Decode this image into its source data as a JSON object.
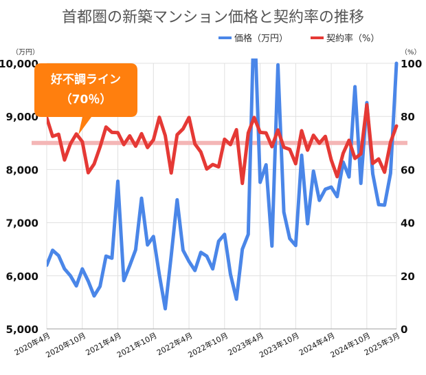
{
  "chart_data": {
    "type": "line",
    "title": "首都圏の新築マンション価格と契約率の推移",
    "x": [
      "2020年4月",
      "2020年5月",
      "2020年6月",
      "2020年7月",
      "2020年8月",
      "2020年9月",
      "2020年10月",
      "2020年11月",
      "2020年12月",
      "2021年1月",
      "2021年2月",
      "2021年3月",
      "2021年4月",
      "2021年5月",
      "2021年6月",
      "2021年7月",
      "2021年8月",
      "2021年9月",
      "2021年10月",
      "2021年11月",
      "2021年12月",
      "2022年1月",
      "2022年2月",
      "2022年3月",
      "2022年4月",
      "2022年5月",
      "2022年6月",
      "2022年7月",
      "2022年8月",
      "2022年9月",
      "2022年10月",
      "2022年11月",
      "2022年12月",
      "2023年1月",
      "2023年2月",
      "2023年3月",
      "2023年4月",
      "2023年5月",
      "2023年6月",
      "2023年7月",
      "2023年8月",
      "2023年9月",
      "2023年10月",
      "2023年11月",
      "2023年12月",
      "2024年1月",
      "2024年2月",
      "2024年3月",
      "2024年4月",
      "2024年5月",
      "2024年6月",
      "2024年7月",
      "2024年8月",
      "2024年9月",
      "2024年10月",
      "2024年11月",
      "2024年12月",
      "2025年1月",
      "2025年2月",
      "2025年3月"
    ],
    "x_tick_labels": [
      "2020年4月",
      "2020年10月",
      "2021年4月",
      "2021年10月",
      "2022年4月",
      "2022年10月",
      "2023年4月",
      "2023年10月",
      "2024年4月",
      "2024年10月",
      "2025年3月"
    ],
    "y_left": {
      "unit_label": "（万円）",
      "lim": [
        5000,
        10000
      ],
      "ticks": [
        "5,000",
        "6,000",
        "7,000",
        "8,000",
        "9,000",
        "10,000"
      ]
    },
    "y_right": {
      "unit_label": "（%）",
      "lim": [
        0,
        100
      ],
      "ticks": [
        "0",
        "20",
        "40",
        "60",
        "80",
        "100"
      ]
    },
    "series": [
      {
        "name": "価格（万円）",
        "axis": "left",
        "color": "#4a86e8",
        "values": [
          6200,
          6480,
          6380,
          6130,
          6000,
          5810,
          6130,
          5900,
          5620,
          5800,
          6370,
          6330,
          7780,
          5910,
          6190,
          6490,
          7460,
          6580,
          6740,
          6020,
          5380,
          6380,
          7430,
          6480,
          6270,
          6100,
          6440,
          6370,
          6130,
          6650,
          6780,
          6030,
          5560,
          6500,
          6780,
          11000,
          7760,
          8090,
          6560,
          9970,
          7200,
          6700,
          6570,
          8270,
          6980,
          7970,
          7420,
          7630,
          7670,
          7490,
          8140,
          7860,
          9560,
          7740,
          9260,
          7920,
          7340,
          7330,
          7930,
          10000
        ]
      },
      {
        "name": "契約率（%）",
        "axis": "right",
        "color": "#e53935",
        "values": [
          79.5,
          72.5,
          73.3,
          63.6,
          69.7,
          73.4,
          70.5,
          58.8,
          62.1,
          68.5,
          76.0,
          74.0,
          73.9,
          69.4,
          72.7,
          68.8,
          73.5,
          68.3,
          71.2,
          79.7,
          72.8,
          58.7,
          73.1,
          75.3,
          79.6,
          69.6,
          66.6,
          60.2,
          61.9,
          61.0,
          71.4,
          69.4,
          75.0,
          54.8,
          73.8,
          79.6,
          74.0,
          73.8,
          68.6,
          74.9,
          68.4,
          67.6,
          62.2,
          74.6,
          67.3,
          72.9,
          69.9,
          72.5,
          63.6,
          57.3,
          66.1,
          71.0,
          64.2,
          65.9,
          84.4,
          62.3,
          64.0,
          59.0,
          70.3,
          76.4
        ]
      }
    ],
    "reference_line": {
      "value": 70,
      "axis": "right",
      "color": "#f4b6b6"
    },
    "annotation": {
      "line1": "好不調ライン",
      "line2": "（70％）",
      "color": "#ff7f0e"
    },
    "grid": true,
    "legend_position": "top-right"
  }
}
